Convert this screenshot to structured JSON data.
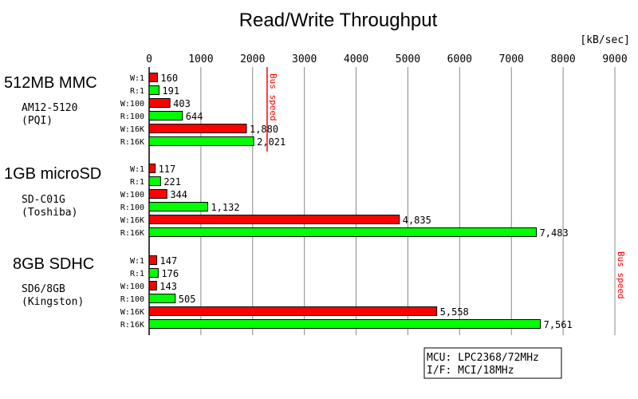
{
  "chart_data": {
    "type": "bar",
    "orientation": "horizontal",
    "title": "Read/Write Throughput",
    "unit_label": "[kB/sec]",
    "xlim": [
      0,
      9000
    ],
    "xticks": [
      0,
      1000,
      2000,
      3000,
      4000,
      5000,
      6000,
      7000,
      8000,
      9000
    ],
    "grid": true,
    "colors": {
      "write": "#ff0000",
      "read": "#00ff00",
      "bus": "#ff0000"
    },
    "groups": [
      {
        "name": "512MB MMC",
        "model": "AM12-5120",
        "maker": "(PQI)",
        "bus_speed": 2280,
        "bars": [
          {
            "label": "W:1",
            "value": 160,
            "text": "160",
            "kind": "write"
          },
          {
            "label": "R:1",
            "value": 191,
            "text": "191",
            "kind": "read"
          },
          {
            "label": "W:100",
            "value": 403,
            "text": "403",
            "kind": "write"
          },
          {
            "label": "R:100",
            "value": 644,
            "text": "644",
            "kind": "read"
          },
          {
            "label": "W:16K",
            "value": 1880,
            "text": "1,880",
            "kind": "write"
          },
          {
            "label": "R:16K",
            "value": 2021,
            "text": "2,021",
            "kind": "read"
          }
        ]
      },
      {
        "name": "1GB microSD",
        "model": "SD-C01G",
        "maker": "(Toshiba)",
        "bars": [
          {
            "label": "W:1",
            "value": 117,
            "text": "117",
            "kind": "write"
          },
          {
            "label": "R:1",
            "value": 221,
            "text": "221",
            "kind": "read"
          },
          {
            "label": "W:100",
            "value": 344,
            "text": "344",
            "kind": "write"
          },
          {
            "label": "R:100",
            "value": 1132,
            "text": "1,132",
            "kind": "read"
          },
          {
            "label": "W:16K",
            "value": 4835,
            "text": "4,835",
            "kind": "write"
          },
          {
            "label": "R:16K",
            "value": 7483,
            "text": "7,483",
            "kind": "read"
          }
        ]
      },
      {
        "name": "8GB SDHC",
        "model": "SD6/8GB",
        "maker": "(Kingston)",
        "bus_speed": 9000,
        "bars": [
          {
            "label": "W:1",
            "value": 147,
            "text": "147",
            "kind": "write"
          },
          {
            "label": "R:1",
            "value": 176,
            "text": "176",
            "kind": "read"
          },
          {
            "label": "W:100",
            "value": 143,
            "text": "143",
            "kind": "write"
          },
          {
            "label": "R:100",
            "value": 505,
            "text": "505",
            "kind": "read"
          },
          {
            "label": "W:16K",
            "value": 5558,
            "text": "5,558",
            "kind": "write"
          },
          {
            "label": "R:16K",
            "value": 7561,
            "text": "7,561",
            "kind": "read"
          }
        ]
      }
    ],
    "bus_label": "Bus speed",
    "info_box": [
      "MCU: LPC2368/72MHz",
      "I/F: MCI/18MHz"
    ]
  }
}
